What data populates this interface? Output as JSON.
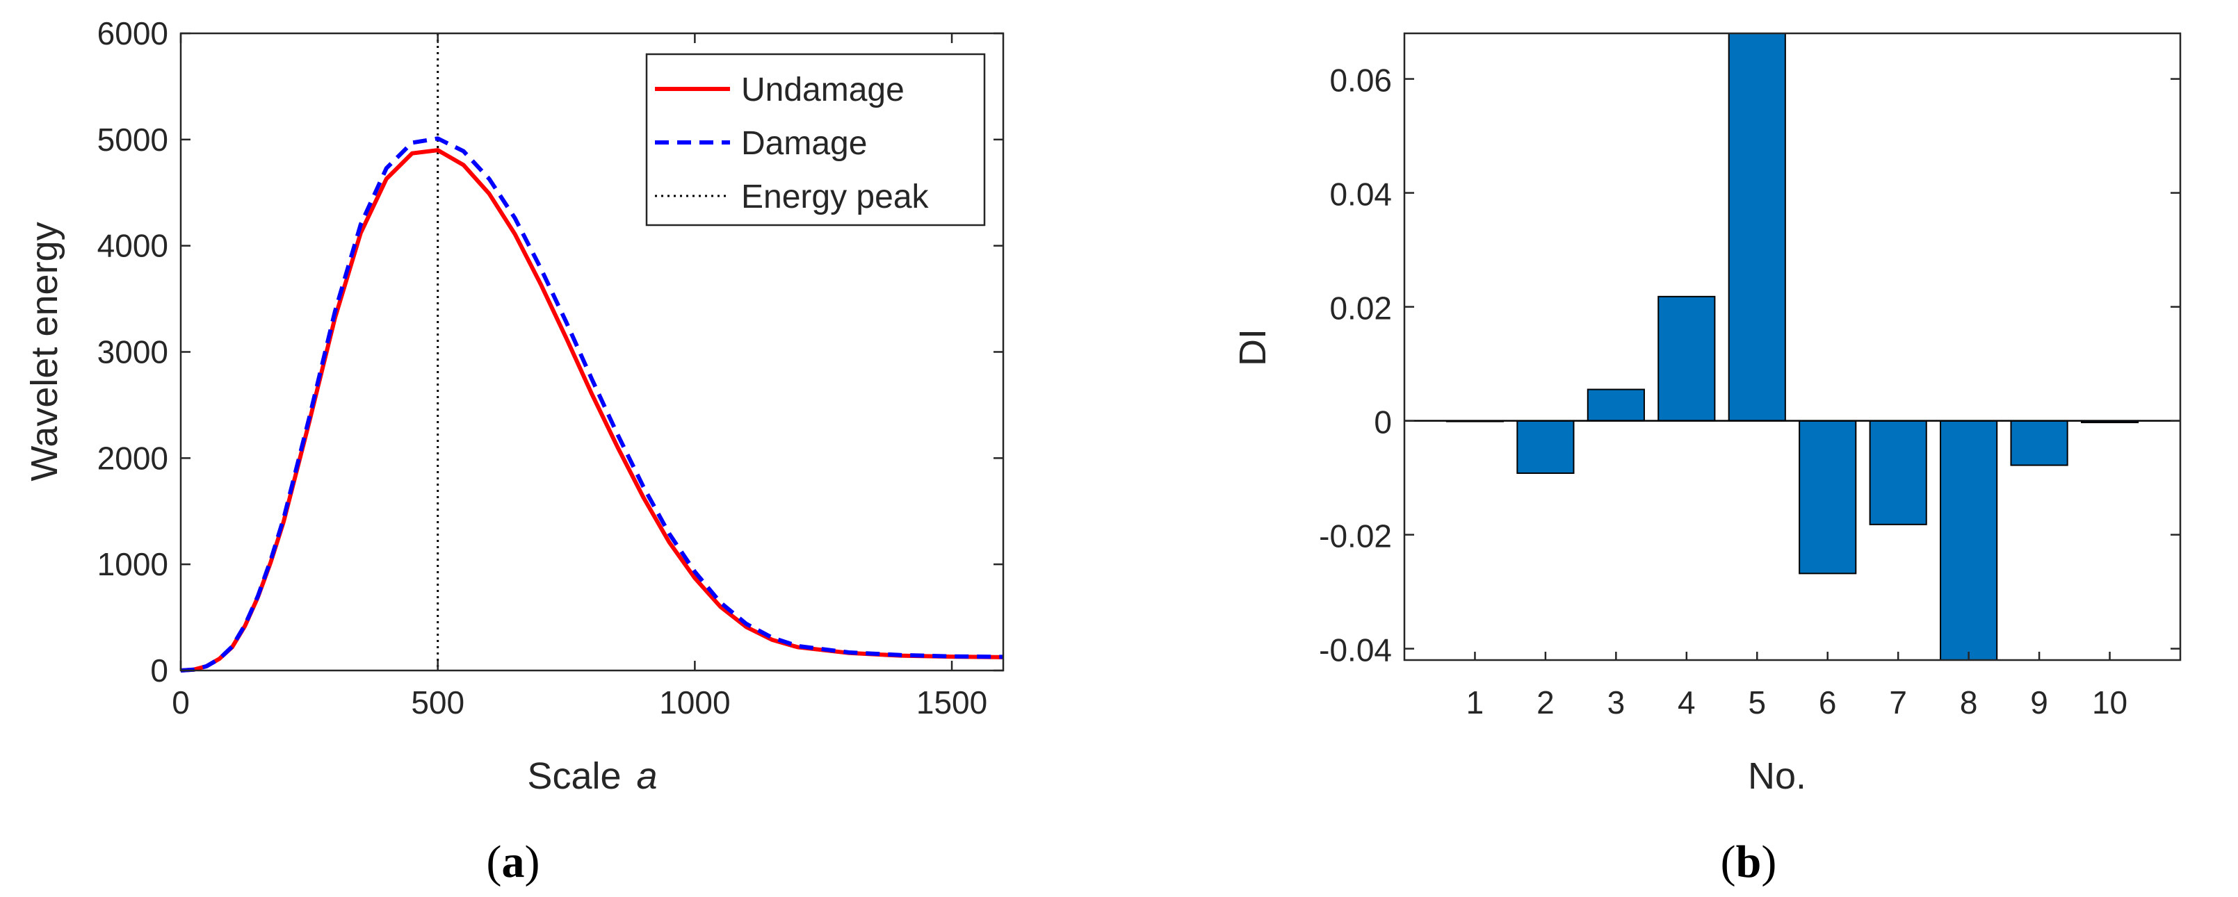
{
  "chart_data": [
    {
      "type": "line",
      "panel": "a",
      "caption_letter": "a",
      "title": "",
      "xlabel": "Scale",
      "xlabel_italic": "a",
      "ylabel": "Wavelet energy",
      "xlim": [
        0,
        1600
      ],
      "ylim": [
        0,
        6000
      ],
      "xticks": [
        0,
        500,
        1000,
        1500
      ],
      "yticks": [
        0,
        1000,
        2000,
        3000,
        4000,
        5000,
        6000
      ],
      "legend_position": "top-right",
      "vline": {
        "name": "Energy peak",
        "x": 500,
        "color": "#000000"
      },
      "series": [
        {
          "name": "Undamage",
          "color": "#ff0000",
          "style": "solid",
          "x": [
            0,
            25,
            50,
            75,
            100,
            125,
            150,
            175,
            200,
            250,
            300,
            350,
            400,
            450,
            500,
            550,
            600,
            650,
            700,
            750,
            800,
            850,
            900,
            950,
            1000,
            1050,
            1100,
            1150,
            1200,
            1300,
            1400,
            1500,
            1600
          ],
          "values": [
            0,
            8,
            40,
            110,
            220,
            420,
            690,
            1020,
            1400,
            2340,
            3320,
            4120,
            4630,
            4870,
            4900,
            4760,
            4490,
            4110,
            3640,
            3130,
            2600,
            2100,
            1630,
            1210,
            870,
            600,
            410,
            290,
            220,
            165,
            140,
            130,
            125
          ]
        },
        {
          "name": "Damage",
          "color": "#0000ff",
          "style": "dashed",
          "x": [
            0,
            25,
            50,
            75,
            100,
            125,
            150,
            175,
            200,
            250,
            300,
            350,
            400,
            450,
            500,
            550,
            600,
            650,
            700,
            750,
            800,
            850,
            900,
            950,
            1000,
            1050,
            1100,
            1150,
            1200,
            1300,
            1400,
            1500,
            1600
          ],
          "values": [
            0,
            8,
            40,
            110,
            225,
            430,
            700,
            1040,
            1430,
            2380,
            3380,
            4200,
            4730,
            4970,
            5010,
            4890,
            4630,
            4260,
            3790,
            3280,
            2740,
            2220,
            1730,
            1290,
            930,
            640,
            440,
            310,
            230,
            170,
            145,
            133,
            128
          ]
        }
      ]
    },
    {
      "type": "bar",
      "panel": "b",
      "caption_letter": "b",
      "title": "",
      "xlabel": "No.",
      "ylabel": "DI",
      "ylim": [
        -0.042,
        0.068
      ],
      "yticks": [
        -0.04,
        -0.02,
        0,
        0.02,
        0.04,
        0.06
      ],
      "ytick_labels": [
        "-0.04",
        "-0.02",
        "0",
        "0.02",
        "0.04",
        "0.06"
      ],
      "categories": [
        "1",
        "2",
        "3",
        "4",
        "5",
        "6",
        "7",
        "8",
        "9",
        "10"
      ],
      "values": [
        0.0,
        -0.0092,
        0.0055,
        0.0218,
        0.07,
        -0.0268,
        -0.0182,
        -0.045,
        -0.0078,
        -0.0003
      ],
      "bar_color": "#0072bd"
    }
  ]
}
